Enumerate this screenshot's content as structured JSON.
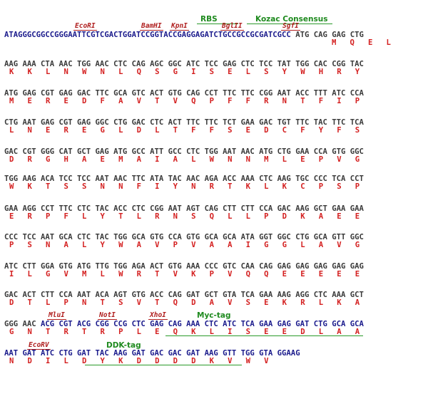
{
  "sequence": {
    "header": {
      "dna_blue": "ATAGGGCGGCCGGGAATTCGTCGACTGGATCCGGTACCGAGGAGATCTGCCGCCGCGATCGCC",
      "dna_rest": " ATG CAG GAG CTG",
      "aa": "M   Q   E   L"
    },
    "rows": [
      {
        "dna": "AAG AAA CTA AAC TGG AAC CTC CAG AGC GGC ATC TCC GAG CTC TCC TAT TGG CAC CGG TAC",
        "aa": "K   K   L   N   W   N   L   Q   S   G   I   S   E   L   S   Y   W   H   R   Y"
      },
      {
        "dna": "ATG GAG CGT GAG GAC TTC GCA GTC ACT GTG CAG CCT TTC TTC CGG AAT ACC TTT ATC CCA",
        "aa": "M   E   R   E   D   F   A   V   T   V   Q   P   F   F   R   N   T   F   I   P"
      },
      {
        "dna": "CTG AAT GAG CGT GAG GGC CTG GAC CTC ACT TTC TTC TCT GAA GAC TGT TTC TAC TTC TCA",
        "aa": "L   N   E   R   E   G   L   D   L   T   F   F   S   E   D   C   F   Y   F   S"
      },
      {
        "dna": "GAC CGT GGG CAT GCT GAG ATG GCC ATT GCC CTC TGG AAT AAC ATG CTG GAA CCA GTG GGC",
        "aa": "D   R   G   H   A   E   M   A   I   A   L   W   N   N   M   L   E   P   V   G"
      },
      {
        "dna": "TGG AAG ACA TCC TCC AAT AAC TTC ATA TAC AAC AGA ACC AAA CTC AAG TGC CCC TCA CCT",
        "aa": "W   K   T   S   S   N   N   F   I   Y   N   R   T   K   L   K   C   P   S   P"
      },
      {
        "dna": "GAA AGG CCT TTC CTC TAC ACC CTC CGG AAT AGT CAG CTT CTT CCA GAC AAG GCT GAA GAA",
        "aa": "E   R   P   F   L   Y   T   L   R   N   S   Q   L   L   P   D   K   A   E   E"
      },
      {
        "dna": "CCC TCC AAT GCA CTC TAC TGG GCA GTG CCA GTG GCA GCA ATA GGT GGC CTG GCA GTT GGC",
        "aa": "P   S   N   A   L   Y   W   A   V   P   V   A   A   I   G   G   L   A   V   G"
      },
      {
        "dna": "ATC CTT GGA GTG ATG TTG TGG AGA ACT GTG AAA CCC GTC CAA CAG GAG GAG GAG GAG GAG",
        "aa": "I   L   G   V   M   L   W   R   T   V   K   P   V   Q   Q   E   E   E   E   E"
      },
      {
        "dna": "GAC ACT CTT CCA AAT ACA AGT GTG ACC CAG GAT GCT GTA TCA GAA AAG AGG CTC AAA GCT",
        "aa": "D   T   L   P   N   T   S   V   T   Q   D   A   V   S   E   K   R   L   K   A"
      }
    ],
    "row11": {
      "dna_gray": "GGG AAC ",
      "dna_blue": "ACG CGT ACG CGG CCG CTC GAG CAG AAA CTC ATC TCA GAA GAG GAT CTG GCA GCA",
      "aa": "G   N   T   R   T   R   P   L   E   Q   K   L   I   S   E   E   D   L   A   A"
    },
    "row12": {
      "dna_blue": "AAT GAT ATC CTG GAT TAC AAG GAT GAC GAC GAT AAG GTT TGG GTA GGAAG",
      "aa": "N   D   I   L   D   Y   K   D   D   D   D   K   V   W   V"
    }
  },
  "sites": {
    "ecori": "EcoRI",
    "bamhi": "BamHI",
    "kpni": "KpnI",
    "bglii": "BglII",
    "sgfi": "SgfI",
    "mlui": "MluI",
    "noti": "NotI",
    "xhoi": "XhoI",
    "ecorv": "EcoRV"
  },
  "features": {
    "rbs": "RBS",
    "kozac": "Kozac Consensus",
    "myc": "Myc-tag",
    "ddk": "DDK-tag"
  },
  "colors": {
    "vector_dna": "#1a1a8c",
    "insert_dna": "#3a3a3a",
    "amino_acid": "#d42020",
    "restriction_site": "#b02020",
    "feature": "#1e8a1e"
  }
}
